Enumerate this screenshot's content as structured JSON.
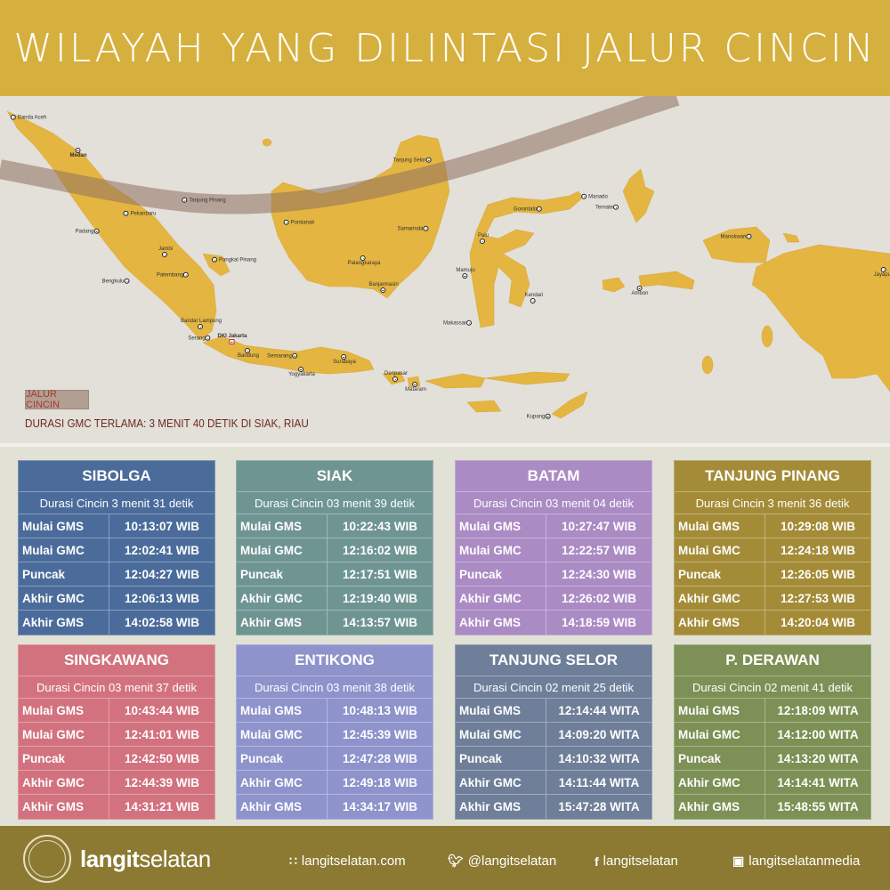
{
  "header": {
    "title": "WILAYAH YANG DILINTASI JALUR CINCIN"
  },
  "map": {
    "legend_label": "JALUR CINCIN",
    "note": "DURASI GMC TERLAMA: 3 MENIT 40 DETIK DI SIAK, RIAU",
    "land_color": "#e4b540",
    "sea_color": "#e3dfd9",
    "ring_path_color": "#8f6f60",
    "cities": [
      "Banda Aceh",
      "Medan",
      "Tanjung Pinang",
      "Pekanbaru",
      "Padang",
      "Jambi",
      "Pangkal Pinang",
      "Palembang",
      "Bengkulu",
      "Bandar Lampung",
      "DKI Jakarta",
      "Serang",
      "Bandung",
      "Semarang",
      "Yogyakarta",
      "Surabaya",
      "Denpasar",
      "Mataram",
      "Pontianak",
      "Samarinda",
      "Palangkaraya",
      "Banjarmasin",
      "Tanjung Selor",
      "Manado",
      "Gorontalo",
      "Ternate",
      "Palu",
      "Mamuju",
      "Kendari",
      "Makassar",
      "Ambon",
      "Manokwari",
      "Jayapura",
      "Kupang"
    ]
  },
  "tables": [
    {
      "name": "SIBOLGA",
      "color": "#4b6c9b",
      "duration": "Durasi Cincin 3 menit 31 detik",
      "rows": [
        [
          "Mulai GMS",
          "10:13:07 WIB"
        ],
        [
          "Mulai GMC",
          "12:02:41 WIB"
        ],
        [
          "Puncak",
          "12:04:27 WIB"
        ],
        [
          "Akhir GMC",
          "12:06:13  WIB"
        ],
        [
          "Akhir GMS",
          "14:02:58 WIB"
        ]
      ]
    },
    {
      "name": "SIAK",
      "color": "#6f9592",
      "duration": "Durasi Cincin 03 menit 39 detik",
      "rows": [
        [
          "Mulai GMS",
          "10:22:43 WIB"
        ],
        [
          "Mulai GMC",
          "12:16:02 WIB"
        ],
        [
          "Puncak",
          "12:17:51 WIB"
        ],
        [
          "Akhir GMC",
          "12:19:40 WIB"
        ],
        [
          "Akhir GMS",
          "14:13:57 WIB"
        ]
      ]
    },
    {
      "name": "BATAM",
      "color": "#ab8bc4",
      "duration": "Durasi Cincin 03 menit 04 detik",
      "rows": [
        [
          "Mulai GMS",
          "10:27:47 WIB"
        ],
        [
          "Mulai GMC",
          "12:22:57 WIB"
        ],
        [
          "Puncak",
          "12:24:30 WIB"
        ],
        [
          "Akhir GMC",
          "12:26:02 WIB"
        ],
        [
          "Akhir GMS",
          "14:18:59 WIB"
        ]
      ]
    },
    {
      "name": "TANJUNG PINANG",
      "color": "#a48b37",
      "duration": "Durasi Cincin 3 menit 36 detik",
      "rows": [
        [
          "Mulai GMS",
          "10:29:08 WIB"
        ],
        [
          "Mulai GMC",
          "12:24:18 WIB"
        ],
        [
          "Puncak",
          "12:26:05 WIB"
        ],
        [
          "Akhir GMC",
          "12:27:53 WIB"
        ],
        [
          "Akhir GMS",
          "14:20:04 WIB"
        ]
      ]
    },
    {
      "name": "SINGKAWANG",
      "color": "#d3727f",
      "duration": "Durasi Cincin 03 menit 37 detik",
      "rows": [
        [
          "Mulai GMS",
          "10:43:44 WIB"
        ],
        [
          "Mulai GMC",
          "12:41:01 WIB"
        ],
        [
          "Puncak",
          "12:42:50 WIB"
        ],
        [
          "Akhir GMC",
          "12:44:39 WIB"
        ],
        [
          "Akhir GMS",
          "14:31:21 WIB"
        ]
      ]
    },
    {
      "name": "ENTIKONG",
      "color": "#8e93cb",
      "duration": "Durasi Cincin 03 menit 38 detik",
      "rows": [
        [
          "Mulai GMS",
          "10:48:13 WIB"
        ],
        [
          "Mulai GMC",
          "12:45:39 WIB"
        ],
        [
          "Puncak",
          "12:47:28 WIB"
        ],
        [
          "Akhir GMC",
          "12:49:18 WIB"
        ],
        [
          "Akhir GMS",
          "14:34:17 WIB"
        ]
      ]
    },
    {
      "name": "TANJUNG SELOR",
      "color": "#6f7f99",
      "duration": "Durasi Cincin 02 menit 25 detik",
      "rows": [
        [
          "Mulai GMS",
          "12:14:44 WITA"
        ],
        [
          "Mulai GMC",
          "14:09:20 WITA"
        ],
        [
          "Puncak",
          "14:10:32 WITA"
        ],
        [
          "Akhir GMC",
          "14:11:44 WITA"
        ],
        [
          "Akhir GMS",
          "15:47:28 WITA"
        ]
      ]
    },
    {
      "name": "P. DERAWAN",
      "color": "#7d9055",
      "duration": "Durasi Cincin 02 menit 41 detik",
      "rows": [
        [
          "Mulai GMS",
          "12:18:09 WITA"
        ],
        [
          "Mulai GMC",
          "14:12:00 WITA"
        ],
        [
          "Puncak",
          "14:13:20 WITA"
        ],
        [
          "Akhir GMC",
          "14:14:41 WITA"
        ],
        [
          "Akhir GMS",
          "15:48:55 WITA"
        ]
      ]
    }
  ],
  "footer": {
    "logo_text": "LANGITSELATAN",
    "brand_bold": "langit",
    "brand_light": "selatan",
    "links": [
      {
        "icon": "rss-icon",
        "label": "langitselatan.com"
      },
      {
        "icon": "twitter-icon",
        "label": "@langitselatan"
      },
      {
        "icon": "facebook-icon",
        "label": "langitselatan"
      },
      {
        "icon": "instagram-icon",
        "label": "langitselatanmedia"
      }
    ]
  }
}
